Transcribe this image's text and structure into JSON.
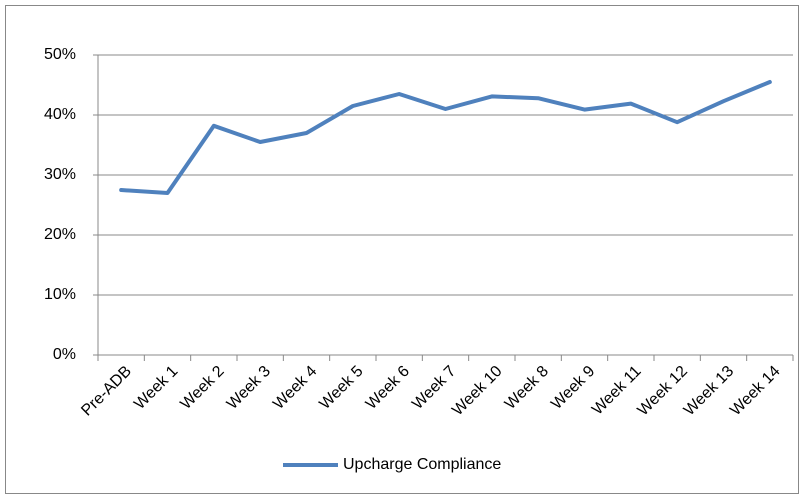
{
  "chart_data": {
    "type": "line",
    "categories": [
      "Pre-ADB",
      "Week 1",
      "Week 2",
      "Week 3",
      "Week 4",
      "Week 5",
      "Week 6",
      "Week 7",
      "Week 10",
      "Week 8",
      "Week 9",
      "Week 11",
      "Week 12",
      "Week 13",
      "Week 14"
    ],
    "series": [
      {
        "name": "Upcharge Compliance",
        "color": "#4f81bd",
        "values": [
          27.5,
          27,
          38.2,
          35.5,
          37,
          41.5,
          43.5,
          41,
          43.1,
          42.8,
          40.9,
          41.9,
          38.8,
          42.3,
          45.5
        ]
      }
    ],
    "ylim": [
      0,
      50
    ],
    "yticks": [
      {
        "value": 0,
        "label": "0%"
      },
      {
        "value": 10,
        "label": "10%"
      },
      {
        "value": 20,
        "label": "20%"
      },
      {
        "value": 30,
        "label": "30%"
      },
      {
        "value": 40,
        "label": "40%"
      },
      {
        "value": 50,
        "label": "50%"
      }
    ],
    "grid": true,
    "legend": "bottom"
  }
}
